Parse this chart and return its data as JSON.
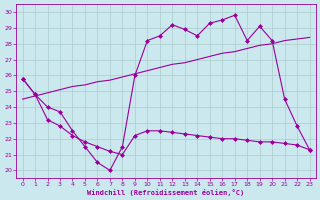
{
  "bg_color": "#cce8ef",
  "line_color": "#990099",
  "grid_color": "#aacccc",
  "xlabel": "Windchill (Refroidissement éolien,°C)",
  "ylim": [
    19.5,
    30.5
  ],
  "xlim": [
    -0.5,
    23.5
  ],
  "yticks": [
    20,
    21,
    22,
    23,
    24,
    25,
    26,
    27,
    28,
    29,
    30
  ],
  "xticks": [
    0,
    1,
    2,
    3,
    4,
    5,
    6,
    7,
    8,
    9,
    10,
    11,
    12,
    13,
    14,
    15,
    16,
    17,
    18,
    19,
    20,
    21,
    22,
    23
  ],
  "line1_x": [
    0,
    1,
    2,
    3,
    4,
    5,
    6,
    7,
    8,
    9,
    10,
    11,
    12,
    13,
    14,
    15,
    16,
    17,
    18,
    19,
    20,
    21,
    22,
    23
  ],
  "line1_y": [
    25.8,
    24.8,
    24.0,
    23.7,
    22.5,
    21.5,
    20.5,
    20.0,
    21.5,
    26.0,
    28.2,
    28.5,
    29.2,
    28.9,
    28.5,
    29.3,
    29.5,
    29.8,
    28.2,
    29.1,
    28.2,
    24.5,
    22.8,
    21.3
  ],
  "line2_x": [
    0,
    1,
    2,
    3,
    4,
    5,
    6,
    7,
    8,
    9,
    10,
    11,
    12,
    13,
    14,
    15,
    16,
    17,
    18,
    19,
    20,
    21,
    22,
    23
  ],
  "line2_y": [
    24.5,
    24.7,
    24.9,
    25.1,
    25.3,
    25.4,
    25.6,
    25.7,
    25.9,
    26.1,
    26.3,
    26.5,
    26.7,
    26.8,
    27.0,
    27.2,
    27.4,
    27.5,
    27.7,
    27.9,
    28.0,
    28.2,
    28.3,
    28.4
  ],
  "line3_x": [
    0,
    1,
    2,
    3,
    4,
    5,
    6,
    7,
    8,
    9,
    10,
    11,
    12,
    13,
    14,
    15,
    16,
    17,
    18,
    19,
    20,
    21,
    22,
    23
  ],
  "line3_y": [
    25.8,
    24.8,
    23.2,
    22.8,
    22.2,
    21.8,
    21.5,
    21.2,
    21.0,
    22.2,
    22.5,
    22.5,
    22.4,
    22.3,
    22.2,
    22.1,
    22.0,
    22.0,
    21.9,
    21.8,
    21.8,
    21.7,
    21.6,
    21.3
  ]
}
